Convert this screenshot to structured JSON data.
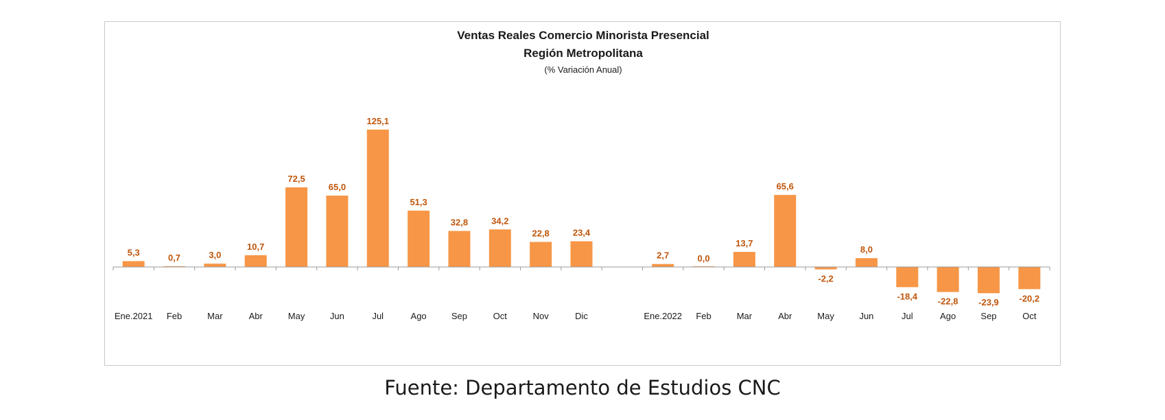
{
  "chart_data": {
    "type": "bar",
    "title": "Ventas Reales Comercio Minorista Presencial",
    "subtitle": "Región Metropolitana",
    "unit_note": "(% Variación Anual)",
    "categories": [
      "Ene.2021",
      "Feb",
      "Mar",
      "Abr",
      "May",
      "Jun",
      "Jul",
      "Ago",
      "Sep",
      "Oct",
      "Nov",
      "Dic",
      "",
      "Ene.2022",
      "Feb",
      "Mar",
      "Abr",
      "May",
      "Jun",
      "Jul",
      "Ago",
      "Sep",
      "Oct"
    ],
    "values": [
      5.3,
      0.7,
      3.0,
      10.7,
      72.5,
      65.0,
      125.1,
      51.3,
      32.8,
      34.2,
      22.8,
      23.4,
      null,
      2.7,
      0.0,
      13.7,
      65.6,
      -2.2,
      8.0,
      -18.4,
      -22.8,
      -23.9,
      -20.2
    ],
    "value_labels": [
      "5,3",
      "0,7",
      "3,0",
      "10,7",
      "72,5",
      "65,0",
      "125,1",
      "51,3",
      "32,8",
      "34,2",
      "22,8",
      "23,4",
      "",
      "2,7",
      "0,0",
      "13,7",
      "65,6",
      "-2,2",
      "8,0",
      "-18,4",
      "-22,8",
      "-23,9",
      "-20,2"
    ],
    "bar_color": "#f79646",
    "label_color": "#c0550a",
    "grid": false,
    "legend": "none"
  },
  "source": "Fuente: Departamento de Estudios CNC"
}
